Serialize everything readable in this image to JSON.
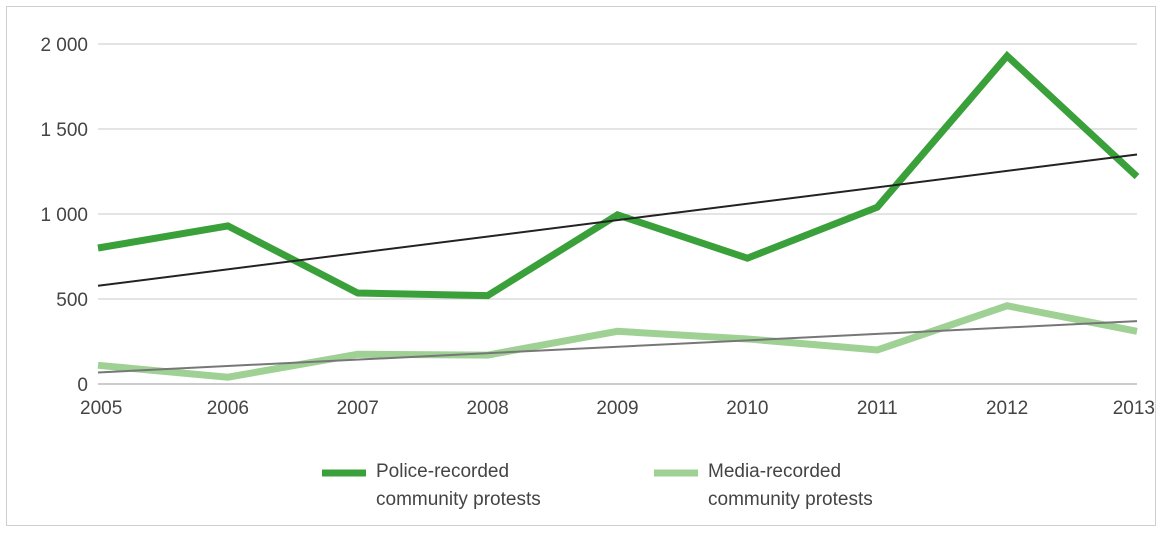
{
  "chart_data": {
    "type": "line",
    "categories": [
      "2005",
      "2006",
      "2007",
      "2008",
      "2009",
      "2010",
      "2011",
      "2012",
      "2013"
    ],
    "y_ticks": [
      {
        "value": 0,
        "label": "0"
      },
      {
        "value": 500,
        "label": "500"
      },
      {
        "value": 1000,
        "label": "1 000"
      },
      {
        "value": 1500,
        "label": "1 500"
      },
      {
        "value": 2000,
        "label": "2 000"
      }
    ],
    "ylim": [
      0,
      2000
    ],
    "grid": true,
    "legend_position": "bottom",
    "series": [
      {
        "name": "Police-recorded community protests",
        "legend_lines": [
          "Police-recorded",
          "community protests"
        ],
        "values": [
          800,
          930,
          535,
          520,
          995,
          740,
          1040,
          1930,
          1220
        ],
        "color": "#3aa03a",
        "trend": {
          "start": 578,
          "end": 1350,
          "color": "#222222"
        }
      },
      {
        "name": "Media-recorded community protests",
        "legend_lines": [
          "Media-recorded",
          "community protests"
        ],
        "values": [
          110,
          40,
          175,
          170,
          310,
          265,
          200,
          460,
          310
        ],
        "color": "#9fd194",
        "trend": {
          "start": 68,
          "end": 370,
          "color": "#777777"
        }
      }
    ]
  }
}
